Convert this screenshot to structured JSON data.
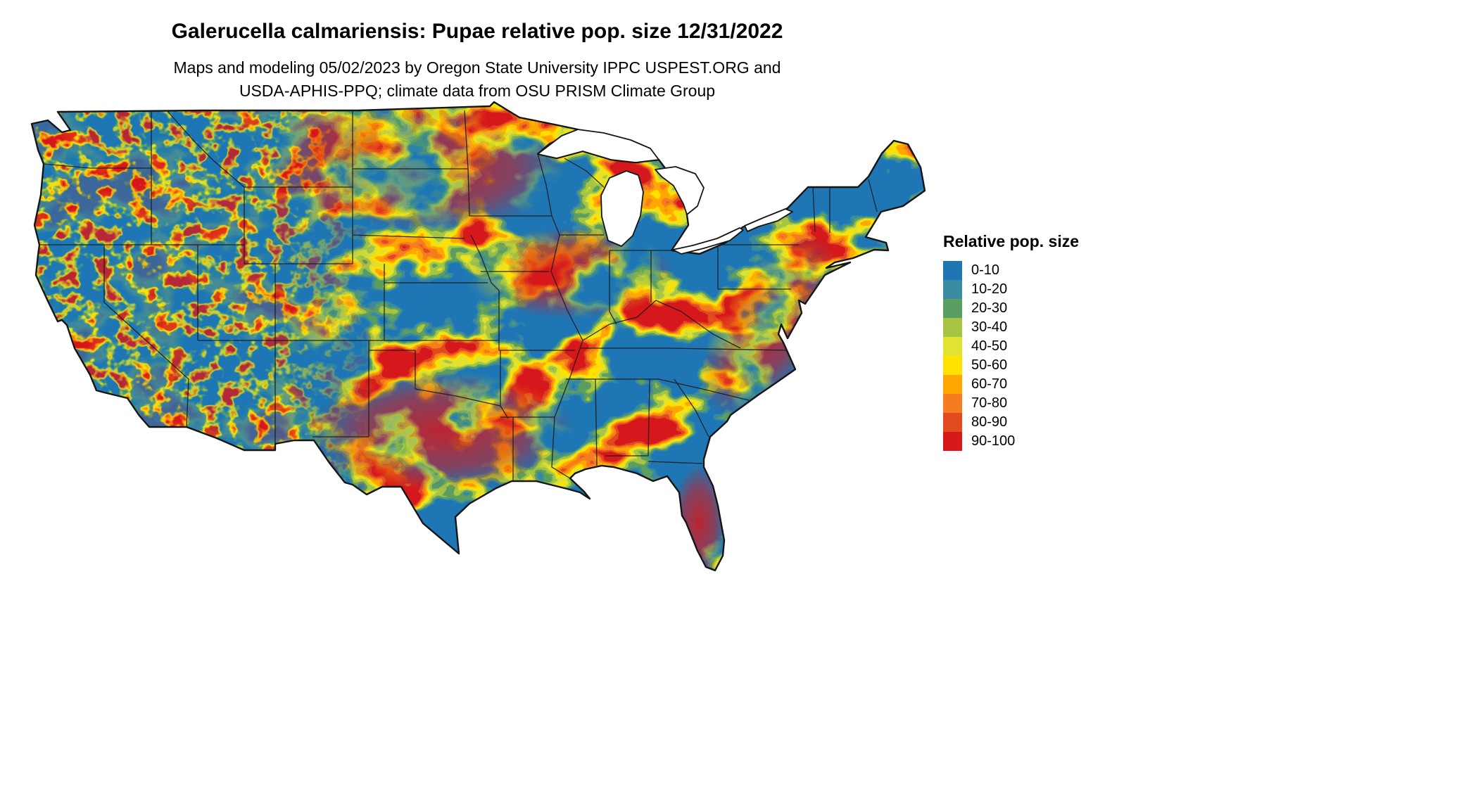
{
  "header": {
    "title": "Galerucella calmariensis: Pupae relative pop. size 12/31/2022",
    "subtitle_line1": "Maps and modeling 05/02/2023 by Oregon State University IPPC USPEST.ORG and",
    "subtitle_line2": "USDA-APHIS-PPQ; climate data from OSU PRISM Climate Group"
  },
  "legend": {
    "title": "Relative pop. size",
    "items": [
      {
        "label": "0-10",
        "color": "#1E77B4"
      },
      {
        "label": "10-20",
        "color": "#3A8BA2"
      },
      {
        "label": "20-30",
        "color": "#5B9E61"
      },
      {
        "label": "30-40",
        "color": "#A6C545"
      },
      {
        "label": "40-50",
        "color": "#E0E430"
      },
      {
        "label": "50-60",
        "color": "#FFE200"
      },
      {
        "label": "60-70",
        "color": "#FFA600"
      },
      {
        "label": "70-80",
        "color": "#F57D20"
      },
      {
        "label": "80-90",
        "color": "#E24A20"
      },
      {
        "label": "90-100",
        "color": "#D7191C"
      }
    ]
  },
  "map": {
    "region": "Continental United States",
    "variable": "Relative pop. size",
    "dominant_class": "0-10",
    "no_data_color": "#ffffff",
    "border_color": "#1a1a1a"
  }
}
